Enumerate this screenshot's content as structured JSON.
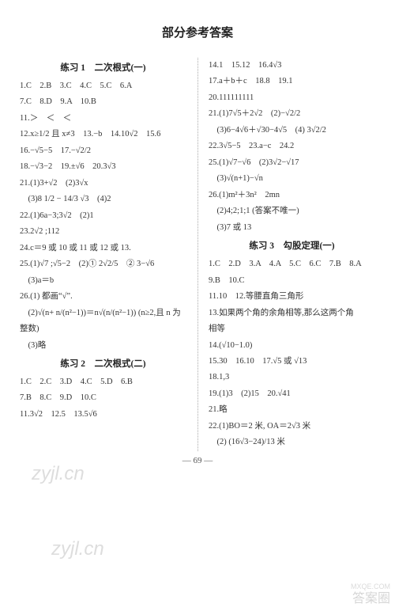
{
  "title": "部分参考答案",
  "page_number": "— 69 —",
  "watermarks": {
    "wm1": "zyjl.cn",
    "wm2": "zyjl.cn",
    "corner_main": "答案圈",
    "corner_url": "MXQE.COM"
  },
  "left": {
    "section1": {
      "head": "练习 1　二次根式(一)",
      "lines": [
        "1.C　2.B　3.C　4.C　5.C　6.A",
        "7.C　8.D　9.A　10.B",
        "11.＞　＜　＜",
        "12.x≥1/2 且 x≠3　13.−b　14.10√2　15.6",
        "16.−√5−5　17.−√2/2",
        "18.−√3−2　19.±√6　20.3√3",
        "21.(1)3+√2　(2)3√x",
        "　(3)8 1/2 − 14/3 √3　(4)2",
        "22.(1)6a−3;3√2　(2)1",
        "23.2√2 ;112",
        "24.c＝9 或 10 或 11 或 12 或 13.",
        "25.(1)√7 ;√5−2　(2)① 2√2/5　② 3−√6",
        "　(3)a＝b",
        "26.(1) 都画“√”.",
        "　(2)√(n+ n/(n²−1))＝n√(n/(n²−1)) (n≥2,且 n 为",
        "整数)",
        "　(3)略"
      ]
    },
    "section2": {
      "head": "练习 2　二次根式(二)",
      "lines": [
        "1.C　2.C　3.D　4.C　5.D　6.B",
        "7.B　8.C　9.D　10.C",
        "11.3√2　12.5　13.5√6"
      ]
    }
  },
  "right": {
    "section2_cont": {
      "lines": [
        "14.1　15.12　16.4√3",
        "17.a＋b＋c　18.8　19.1",
        "20.111111111",
        "21.(1)7√5＋2√2　(2)−√2/2",
        "　(3)6−4√6＋√30−4√5　(4) 3√2/2",
        "22.3√5−5　23.a−c　24.2",
        "25.(1)√7−√6　(2)3√2−√17",
        "　(3)√(n+1)−√n",
        "26.(1)m²＋3n²　2mn",
        "　(2)4;2;1;1 (答案不唯一)",
        "　(3)7 或 13"
      ]
    },
    "section3": {
      "head": "练习 3　勾股定理(一)",
      "lines": [
        "1.C　2.D　3.A　4.A　5.C　6.C　7.B　8.A",
        "9.B　10.C",
        "11.10　12.等腰直角三角形",
        "13.如果两个角的余角相等,那么这两个角",
        "相等",
        "14.(√10−1.0)",
        "15.30　16.10　17.√5 或 √13",
        "18.1,3",
        "19.(1)3　(2)15　20.√41",
        "21.略",
        "22.(1)BO＝2 米, OA＝2√3 米",
        "　(2) (16√3−24)/13 米"
      ]
    }
  },
  "style": {
    "background": "#ffffff",
    "text_color": "#333333",
    "title_fontsize": 15,
    "body_fontsize": 10.5,
    "section_fontsize": 11.5,
    "line_height": 1.95,
    "divider_color": "#aaaaaa",
    "font_family": "SimSun"
  }
}
